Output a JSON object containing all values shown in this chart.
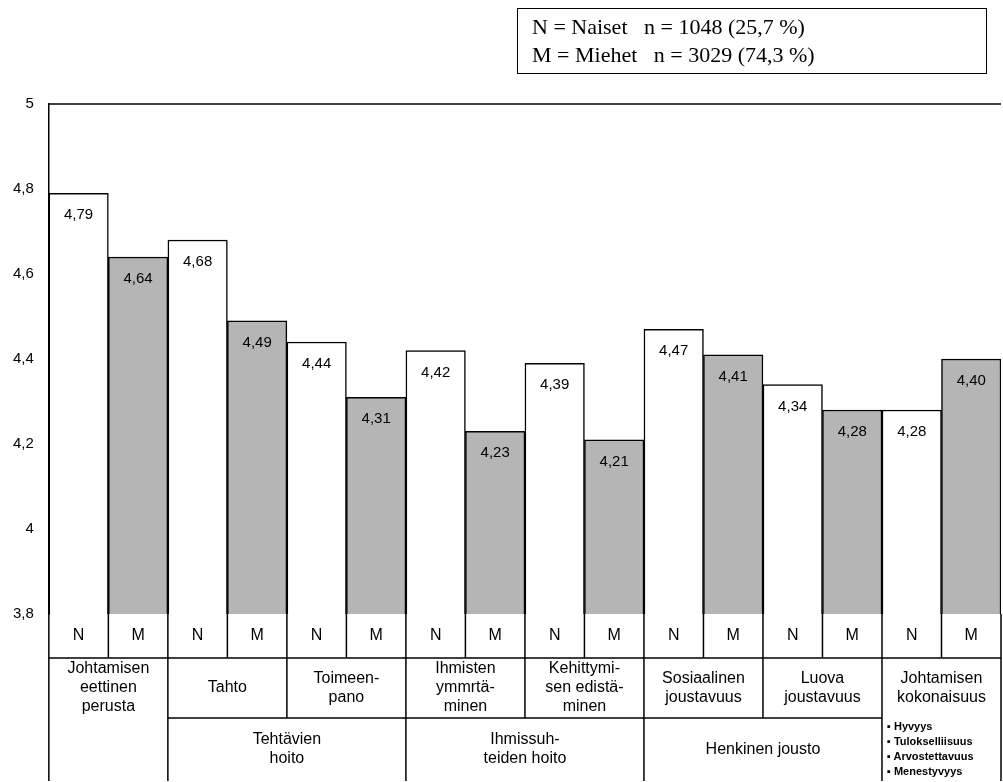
{
  "chart_data": {
    "type": "bar",
    "categories": [
      "Johtamisen\neettinen\nperusta",
      "Tahto",
      "Toimeen-\npano",
      "Ihmisten\nymmrtä-\nminen",
      "Kehittymi-\nsen edistä-\nminen",
      "Sosiaalinen\njoustavuus",
      "Luova\njoustavuus",
      "Johtamisen\nkokonaisuus"
    ],
    "series": [
      {
        "name": "N",
        "color": "#ffffff",
        "values": [
          4.79,
          4.68,
          4.44,
          4.42,
          4.39,
          4.47,
          4.34,
          4.28
        ],
        "value_labels": [
          "4,79",
          "4,68",
          "4,44",
          "4,42",
          "4,39",
          "4,47",
          "4,34",
          "4,28"
        ]
      },
      {
        "name": "M",
        "color": "#b5b5b5",
        "values": [
          4.64,
          4.49,
          4.31,
          4.23,
          4.21,
          4.41,
          4.28,
          4.4
        ],
        "value_labels": [
          "4,64",
          "4,49",
          "4,31",
          "4,23",
          "4,21",
          "4,41",
          "4,28",
          "4,40"
        ]
      }
    ],
    "ylim": [
      3.8,
      5
    ],
    "yticks": [
      {
        "value": 3.8,
        "label": "3,8"
      },
      4,
      {
        "value": 4.2,
        "label": "4,2"
      },
      {
        "value": 4.4,
        "label": "4,4"
      },
      {
        "value": 4.6,
        "label": "4,6"
      },
      {
        "value": 4.8,
        "label": "4,8"
      },
      5
    ],
    "grid": false,
    "legend": false,
    "annotations": [
      "N = Naiset   n = 1048 (25,7 %)",
      "M = Miehet   n = 3029 (74,3 %)",
      "Tehtävien\nhoito",
      "Ihmissuh-\nteiden hoito",
      "Henkinen jousto",
      "▪ Hyvyys",
      "▪ Tulokselliisuus",
      "▪ Arvostettavuus",
      "▪ Menestyvyys"
    ]
  }
}
